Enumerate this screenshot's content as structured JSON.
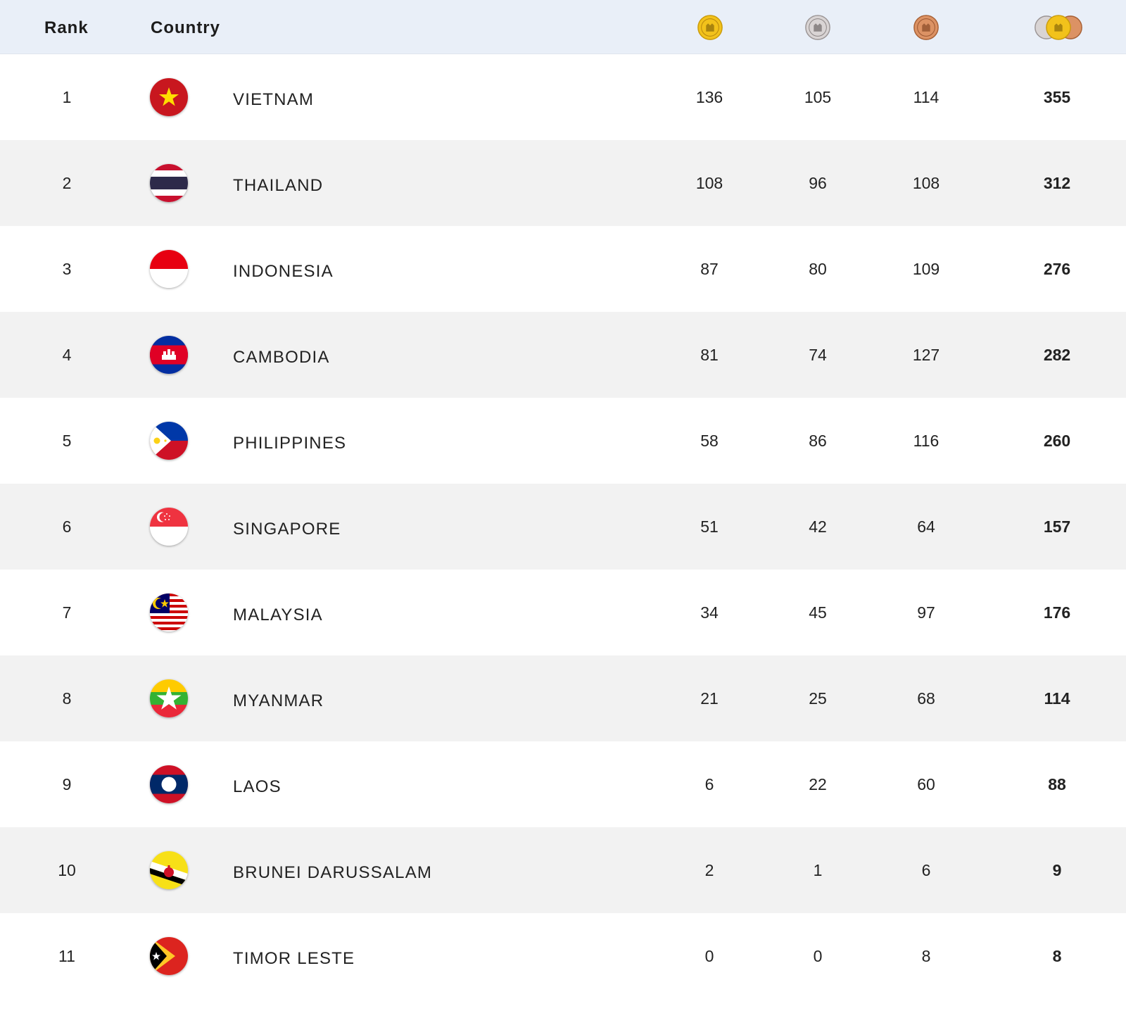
{
  "header": {
    "rank_label": "Rank",
    "country_label": "Country",
    "medal_icons": [
      "gold-medal-icon",
      "silver-medal-icon",
      "bronze-medal-icon",
      "total-medals-icon"
    ]
  },
  "colors": {
    "header_bg": "#e9eff8",
    "row_alt_bg": "#f2f2f2",
    "gold": "#f2c21b",
    "silver": "#c9c4c4",
    "bronze": "#d98a5a"
  },
  "rows": [
    {
      "rank": "1",
      "country": "VIETNAM",
      "flag": "vietnam-flag-icon",
      "gold": "136",
      "silver": "105",
      "bronze": "114",
      "total": "355"
    },
    {
      "rank": "2",
      "country": "THAILAND",
      "flag": "thailand-flag-icon",
      "gold": "108",
      "silver": "96",
      "bronze": "108",
      "total": "312"
    },
    {
      "rank": "3",
      "country": "INDONESIA",
      "flag": "indonesia-flag-icon",
      "gold": "87",
      "silver": "80",
      "bronze": "109",
      "total": "276"
    },
    {
      "rank": "4",
      "country": "CAMBODIA",
      "flag": "cambodia-flag-icon",
      "gold": "81",
      "silver": "74",
      "bronze": "127",
      "total": "282"
    },
    {
      "rank": "5",
      "country": "PHILIPPINES",
      "flag": "philippines-flag-icon",
      "gold": "58",
      "silver": "86",
      "bronze": "116",
      "total": "260"
    },
    {
      "rank": "6",
      "country": "SINGAPORE",
      "flag": "singapore-flag-icon",
      "gold": "51",
      "silver": "42",
      "bronze": "64",
      "total": "157"
    },
    {
      "rank": "7",
      "country": "MALAYSIA",
      "flag": "malaysia-flag-icon",
      "gold": "34",
      "silver": "45",
      "bronze": "97",
      "total": "176"
    },
    {
      "rank": "8",
      "country": "MYANMAR",
      "flag": "myanmar-flag-icon",
      "gold": "21",
      "silver": "25",
      "bronze": "68",
      "total": "114"
    },
    {
      "rank": "9",
      "country": "LAOS",
      "flag": "laos-flag-icon",
      "gold": "6",
      "silver": "22",
      "bronze": "60",
      "total": "88"
    },
    {
      "rank": "10",
      "country": "BRUNEI DARUSSALAM",
      "flag": "brunei-flag-icon",
      "gold": "2",
      "silver": "1",
      "bronze": "6",
      "total": "9"
    },
    {
      "rank": "11",
      "country": "TIMOR LESTE",
      "flag": "timor-leste-flag-icon",
      "gold": "0",
      "silver": "0",
      "bronze": "8",
      "total": "8"
    }
  ]
}
